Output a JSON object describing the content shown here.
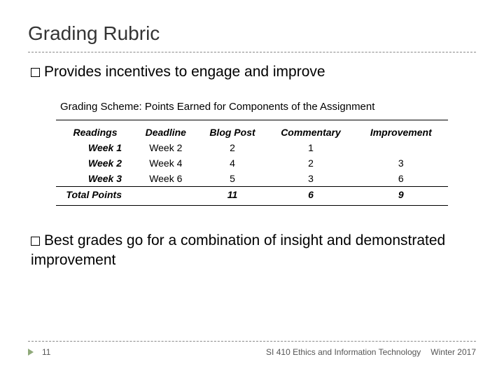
{
  "title": "Grading Rubric",
  "bullets": {
    "b1_lead": "Provides",
    "b1_rest": " incentives to engage and improve",
    "b2_lead": "Best",
    "b2_rest": " grades go for a combination of insight and demonstrated improvement"
  },
  "table": {
    "title": "Grading Scheme: Points Earned for Components of the Assignment",
    "columns": [
      "Readings",
      "Deadline",
      "Blog Post",
      "Commentary",
      "Improvement"
    ],
    "rows": [
      {
        "label": "Week 1",
        "cells": [
          "Week 2",
          "2",
          "1",
          ""
        ]
      },
      {
        "label": "Week 2",
        "cells": [
          "Week 4",
          "4",
          "2",
          "3"
        ]
      },
      {
        "label": "Week 3",
        "cells": [
          "Week 6",
          "5",
          "3",
          "6"
        ]
      }
    ],
    "totals": {
      "label": "Total Points",
      "cells": [
        "",
        "11",
        "6",
        "9"
      ]
    },
    "col_widths": [
      "20%",
      "16%",
      "18%",
      "22%",
      "24%"
    ],
    "header_fontsize": 14,
    "cell_fontsize": 14,
    "border_color": "#000000"
  },
  "footer": {
    "page": "11",
    "course": "SI 410 Ethics and Information Technology",
    "term": "Winter 2017",
    "arrow_color": "#8fa97a"
  },
  "colors": {
    "title_color": "#343434",
    "text_color": "#000000",
    "dashed_rule": "#888888",
    "background": "#ffffff"
  }
}
